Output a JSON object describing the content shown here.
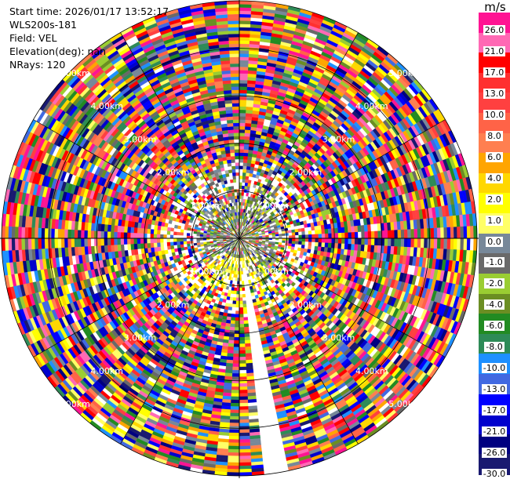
{
  "header": {
    "start_time": "Start time: 2026/01/17 13:52:17",
    "instrument": "WLS200s-181",
    "field": "Field: VEL",
    "elevation": "Elevation(deg): nan",
    "nrays": "NRays: 120"
  },
  "colorbar": {
    "unit": "m/s",
    "tick_labels": [
      "26.0",
      "21.0",
      "17.0",
      "13.0",
      "10.0",
      "8.0",
      "6.0",
      "4.0",
      "2.0",
      "1.0",
      "0.0",
      "-1.0",
      "-2.0",
      "-4.0",
      "-6.0",
      "-8.0",
      "-10.0",
      "-13.0",
      "-17.0",
      "-21.0",
      "-26.0",
      "-30.0"
    ],
    "colors": [
      "#ff1493",
      "#ff69b4",
      "#ff0000",
      "#ff3030",
      "#ff4040",
      "#ff6347",
      "#ff7f50",
      "#ffa500",
      "#ffd700",
      "#ffff00",
      "#ffff66",
      "#778899",
      "#696969",
      "#9acd32",
      "#6b8e23",
      "#228b22",
      "#2e8b57",
      "#1e90ff",
      "#4169e1",
      "#0000ff",
      "#0000cd",
      "#000080",
      "#191970"
    ]
  },
  "chart_data": {
    "type": "ppi",
    "title": "",
    "field": "VEL",
    "units": "m/s",
    "nrays": 120,
    "elevation_deg": "nan",
    "range_rings": [
      {
        "range_km": 1.0,
        "label": "1.00km"
      },
      {
        "range_km": 2.0,
        "label": "2.00km"
      },
      {
        "range_km": 3.0,
        "label": "3.00km"
      },
      {
        "range_km": 4.0,
        "label": "4.00km"
      },
      {
        "range_km": 5.0,
        "label": "5.00km"
      }
    ],
    "ring_labels_visible": [
      "5.00km",
      "4.00km",
      "3.00km",
      "2.00km",
      "1.00km",
      "1.00km",
      "1.00km",
      "1.00km",
      "2.00km",
      "2.00km",
      "2.00km",
      "3.00km",
      "3.00km",
      "3.00km",
      "4.00km",
      "4.00km",
      "4.00km",
      "5.00km"
    ],
    "max_range_km": 5.0,
    "gap_azimuth_deg": [
      168,
      174
    ],
    "value_range": [
      -30.0,
      26.0
    ]
  }
}
